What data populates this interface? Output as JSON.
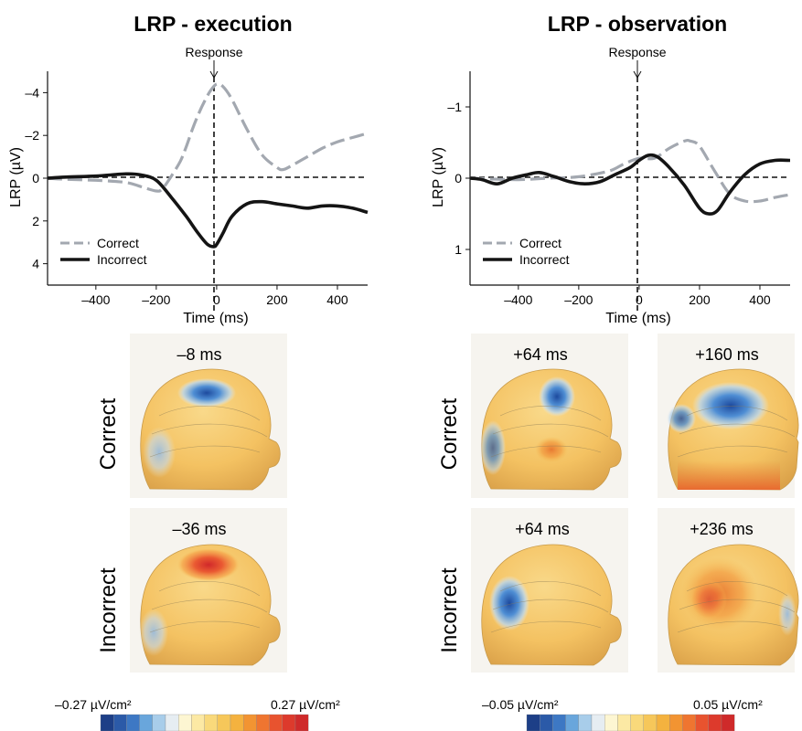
{
  "panels": {
    "execution": {
      "title": "LRP - execution",
      "annotation": "Response",
      "latencies": {
        "correct": "–8 ms",
        "incorrect": "–36 ms"
      },
      "colorbar": {
        "min_label": "–0.27 µV/cm²",
        "max_label": "0.27 µV/cm²"
      }
    },
    "observation": {
      "title": "LRP - observation",
      "annotation": "Response",
      "latencies": {
        "correct_early": "+64 ms",
        "correct_late": "+160 ms",
        "incorrect_early": "+64 ms",
        "incorrect_late": "+236 ms"
      },
      "colorbar": {
        "min_label": "–0.05 µV/cm²",
        "max_label": "0.05 µV/cm²"
      }
    }
  },
  "row_labels": {
    "correct": "Correct",
    "incorrect": "Incorrect"
  },
  "colors": {
    "correct_line": "#a3a8b0",
    "incorrect_line": "#141414",
    "colormap": [
      "#1d3f87",
      "#2b5aa8",
      "#3d78c4",
      "#69a6dc",
      "#a8cdea",
      "#e6edf2",
      "#fdf6d2",
      "#fce9a4",
      "#f9d97b",
      "#f6c75a",
      "#f4b23f",
      "#f29432",
      "#ef7530",
      "#e8532f",
      "#dd3a2c",
      "#cf2a2a"
    ]
  },
  "chart_data": [
    {
      "type": "line",
      "title": "LRP - execution",
      "xlabel": "Time (ms)",
      "ylabel": "LRP (µV)",
      "xlim": [
        -560,
        500
      ],
      "ylim": [
        5,
        -5
      ],
      "y_inverted": true,
      "xticks": [
        -400,
        -200,
        0,
        200,
        400
      ],
      "xtick_labels": [
        "–400",
        "–200",
        "0",
        "200",
        "400"
      ],
      "yticks": [
        -4,
        -2,
        0,
        2,
        4
      ],
      "ytick_labels": [
        "–4",
        "–2",
        "0",
        "2",
        "4"
      ],
      "legend": "bottom-left",
      "grid": false,
      "event_line_x": 0,
      "series": [
        {
          "name": "Correct",
          "style": "dashed",
          "x": [
            -560,
            -500,
            -400,
            -300,
            -250,
            -200,
            -180,
            -150,
            -120,
            -100,
            -80,
            -60,
            -40,
            -20,
            0,
            20,
            50,
            100,
            150,
            200,
            220,
            250,
            300,
            350,
            400,
            450,
            500
          ],
          "y": [
            0,
            0.05,
            0.1,
            0.2,
            0.4,
            0.6,
            0.5,
            -0.1,
            -0.8,
            -1.5,
            -2.3,
            -3.0,
            -3.6,
            -4.1,
            -4.4,
            -4.3,
            -3.7,
            -2.3,
            -1.1,
            -0.5,
            -0.4,
            -0.6,
            -1.0,
            -1.4,
            -1.7,
            -1.9,
            -2.1
          ]
        },
        {
          "name": "Incorrect",
          "style": "solid",
          "x": [
            -560,
            -500,
            -400,
            -300,
            -250,
            -200,
            -150,
            -100,
            -60,
            -30,
            -10,
            0,
            20,
            50,
            100,
            150,
            200,
            250,
            300,
            350,
            400,
            450,
            500
          ],
          "y": [
            0,
            -0.05,
            -0.1,
            -0.2,
            -0.15,
            0.1,
            0.9,
            1.8,
            2.6,
            3.1,
            3.2,
            3.1,
            2.6,
            1.8,
            1.2,
            1.1,
            1.2,
            1.3,
            1.4,
            1.3,
            1.3,
            1.4,
            1.6
          ]
        }
      ]
    },
    {
      "type": "line",
      "title": "LRP - observation",
      "xlabel": "Time (ms)",
      "ylabel": "LRP (µV)",
      "xlim": [
        -560,
        500
      ],
      "ylim": [
        1.5,
        -1.5
      ],
      "y_inverted": true,
      "xticks": [
        -400,
        -200,
        0,
        200,
        400
      ],
      "xtick_labels": [
        "–400",
        "–200",
        "0",
        "200",
        "400"
      ],
      "yticks": [
        -1,
        0,
        1
      ],
      "ytick_labels": [
        "–1",
        "0",
        "1"
      ],
      "legend": "bottom-left",
      "grid": false,
      "event_line_x": 0,
      "series": [
        {
          "name": "Correct",
          "style": "dashed",
          "x": [
            -560,
            -500,
            -400,
            -300,
            -200,
            -100,
            -50,
            0,
            50,
            100,
            150,
            170,
            200,
            250,
            300,
            350,
            400,
            450,
            500
          ],
          "y": [
            0,
            0.01,
            0.02,
            0,
            -0.02,
            -0.1,
            -0.2,
            -0.28,
            -0.28,
            -0.42,
            -0.52,
            -0.52,
            -0.45,
            -0.1,
            0.22,
            0.32,
            0.32,
            0.27,
            0.23
          ]
        },
        {
          "name": "Incorrect",
          "style": "solid",
          "x": [
            -560,
            -520,
            -470,
            -420,
            -370,
            -330,
            -280,
            -230,
            -180,
            -130,
            -80,
            -30,
            0,
            30,
            60,
            100,
            150,
            200,
            230,
            260,
            300,
            350,
            400,
            450,
            500
          ],
          "y": [
            0,
            0.02,
            0.08,
            0.0,
            -0.05,
            -0.08,
            -0.02,
            0.05,
            0.08,
            0.05,
            -0.05,
            -0.15,
            -0.25,
            -0.32,
            -0.3,
            -0.15,
            0.1,
            0.42,
            0.5,
            0.45,
            0.2,
            -0.05,
            -0.2,
            -0.25,
            -0.25
          ]
        }
      ]
    }
  ]
}
